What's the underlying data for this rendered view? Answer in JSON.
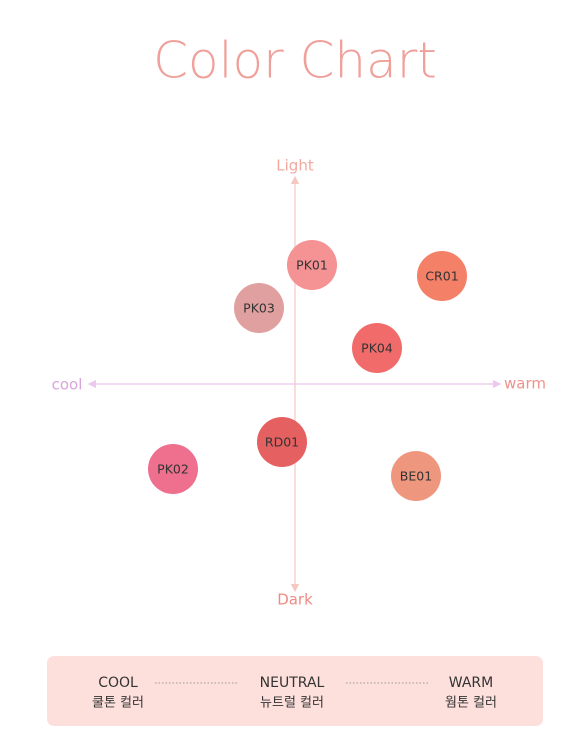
{
  "title": "Color Chart",
  "axes": {
    "top": "Light",
    "bottom": "Dark",
    "left": "cool",
    "right": "warm"
  },
  "nodes": [
    {
      "label": "PK01",
      "color": "#f49294"
    },
    {
      "label": "CR01",
      "color": "#f58068"
    },
    {
      "label": "PK03",
      "color": "#e0a09f"
    },
    {
      "label": "PK04",
      "color": "#f26b6b"
    },
    {
      "label": "RD01",
      "color": "#e56060"
    },
    {
      "label": "PK02",
      "color": "#ee6f8e"
    },
    {
      "label": "BE01",
      "color": "#ef967e"
    }
  ],
  "legend": [
    {
      "title": "COOL",
      "subtitle": "쿨톤 컬러"
    },
    {
      "title": "NEUTRAL",
      "subtitle": "뉴트럴 컬러"
    },
    {
      "title": "WARM",
      "subtitle": "웜톤 컬러"
    }
  ]
}
